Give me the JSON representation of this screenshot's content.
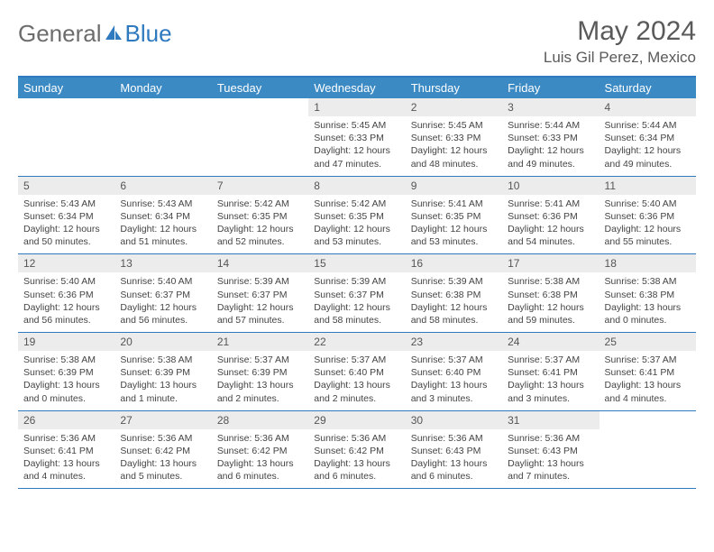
{
  "logo": {
    "text_gray": "General",
    "text_blue": "Blue"
  },
  "title": "May 2024",
  "location": "Luis Gil Perez, Mexico",
  "colors": {
    "header_bar": "#3b8ac4",
    "border": "#2f7abf",
    "daynum_bg": "#ececec",
    "text_primary": "#444444",
    "text_secondary": "#5a5a5a",
    "logo_gray": "#6d6d6d",
    "background": "#ffffff"
  },
  "weekdays": [
    "Sunday",
    "Monday",
    "Tuesday",
    "Wednesday",
    "Thursday",
    "Friday",
    "Saturday"
  ],
  "weeks": [
    [
      {
        "empty": true
      },
      {
        "empty": true
      },
      {
        "empty": true
      },
      {
        "num": "1",
        "sunrise": "5:45 AM",
        "sunset": "6:33 PM",
        "daylight": "12 hours and 47 minutes."
      },
      {
        "num": "2",
        "sunrise": "5:45 AM",
        "sunset": "6:33 PM",
        "daylight": "12 hours and 48 minutes."
      },
      {
        "num": "3",
        "sunrise": "5:44 AM",
        "sunset": "6:33 PM",
        "daylight": "12 hours and 49 minutes."
      },
      {
        "num": "4",
        "sunrise": "5:44 AM",
        "sunset": "6:34 PM",
        "daylight": "12 hours and 49 minutes."
      }
    ],
    [
      {
        "num": "5",
        "sunrise": "5:43 AM",
        "sunset": "6:34 PM",
        "daylight": "12 hours and 50 minutes."
      },
      {
        "num": "6",
        "sunrise": "5:43 AM",
        "sunset": "6:34 PM",
        "daylight": "12 hours and 51 minutes."
      },
      {
        "num": "7",
        "sunrise": "5:42 AM",
        "sunset": "6:35 PM",
        "daylight": "12 hours and 52 minutes."
      },
      {
        "num": "8",
        "sunrise": "5:42 AM",
        "sunset": "6:35 PM",
        "daylight": "12 hours and 53 minutes."
      },
      {
        "num": "9",
        "sunrise": "5:41 AM",
        "sunset": "6:35 PM",
        "daylight": "12 hours and 53 minutes."
      },
      {
        "num": "10",
        "sunrise": "5:41 AM",
        "sunset": "6:36 PM",
        "daylight": "12 hours and 54 minutes."
      },
      {
        "num": "11",
        "sunrise": "5:40 AM",
        "sunset": "6:36 PM",
        "daylight": "12 hours and 55 minutes."
      }
    ],
    [
      {
        "num": "12",
        "sunrise": "5:40 AM",
        "sunset": "6:36 PM",
        "daylight": "12 hours and 56 minutes."
      },
      {
        "num": "13",
        "sunrise": "5:40 AM",
        "sunset": "6:37 PM",
        "daylight": "12 hours and 56 minutes."
      },
      {
        "num": "14",
        "sunrise": "5:39 AM",
        "sunset": "6:37 PM",
        "daylight": "12 hours and 57 minutes."
      },
      {
        "num": "15",
        "sunrise": "5:39 AM",
        "sunset": "6:37 PM",
        "daylight": "12 hours and 58 minutes."
      },
      {
        "num": "16",
        "sunrise": "5:39 AM",
        "sunset": "6:38 PM",
        "daylight": "12 hours and 58 minutes."
      },
      {
        "num": "17",
        "sunrise": "5:38 AM",
        "sunset": "6:38 PM",
        "daylight": "12 hours and 59 minutes."
      },
      {
        "num": "18",
        "sunrise": "5:38 AM",
        "sunset": "6:38 PM",
        "daylight": "13 hours and 0 minutes."
      }
    ],
    [
      {
        "num": "19",
        "sunrise": "5:38 AM",
        "sunset": "6:39 PM",
        "daylight": "13 hours and 0 minutes."
      },
      {
        "num": "20",
        "sunrise": "5:38 AM",
        "sunset": "6:39 PM",
        "daylight": "13 hours and 1 minute."
      },
      {
        "num": "21",
        "sunrise": "5:37 AM",
        "sunset": "6:39 PM",
        "daylight": "13 hours and 2 minutes."
      },
      {
        "num": "22",
        "sunrise": "5:37 AM",
        "sunset": "6:40 PM",
        "daylight": "13 hours and 2 minutes."
      },
      {
        "num": "23",
        "sunrise": "5:37 AM",
        "sunset": "6:40 PM",
        "daylight": "13 hours and 3 minutes."
      },
      {
        "num": "24",
        "sunrise": "5:37 AM",
        "sunset": "6:41 PM",
        "daylight": "13 hours and 3 minutes."
      },
      {
        "num": "25",
        "sunrise": "5:37 AM",
        "sunset": "6:41 PM",
        "daylight": "13 hours and 4 minutes."
      }
    ],
    [
      {
        "num": "26",
        "sunrise": "5:36 AM",
        "sunset": "6:41 PM",
        "daylight": "13 hours and 4 minutes."
      },
      {
        "num": "27",
        "sunrise": "5:36 AM",
        "sunset": "6:42 PM",
        "daylight": "13 hours and 5 minutes."
      },
      {
        "num": "28",
        "sunrise": "5:36 AM",
        "sunset": "6:42 PM",
        "daylight": "13 hours and 6 minutes."
      },
      {
        "num": "29",
        "sunrise": "5:36 AM",
        "sunset": "6:42 PM",
        "daylight": "13 hours and 6 minutes."
      },
      {
        "num": "30",
        "sunrise": "5:36 AM",
        "sunset": "6:43 PM",
        "daylight": "13 hours and 6 minutes."
      },
      {
        "num": "31",
        "sunrise": "5:36 AM",
        "sunset": "6:43 PM",
        "daylight": "13 hours and 7 minutes."
      },
      {
        "empty": true
      }
    ]
  ],
  "labels": {
    "sunrise_prefix": "Sunrise: ",
    "sunset_prefix": "Sunset: ",
    "daylight_prefix": "Daylight: "
  }
}
